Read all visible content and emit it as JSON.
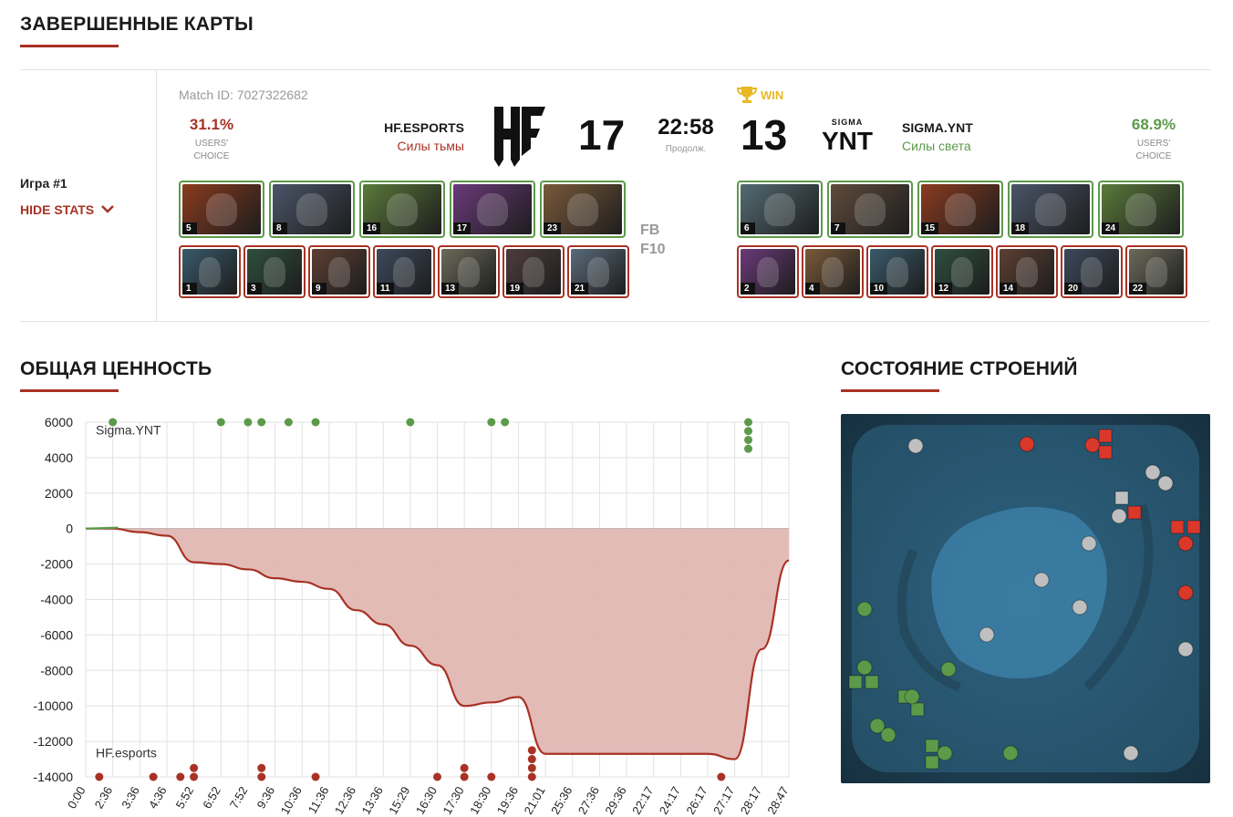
{
  "sections": {
    "completed_maps": "ЗАВЕРШЕННЫЕ КАРТЫ",
    "net_worth": "ОБЩАЯ ЦЕННОСТЬ",
    "buildings": "СОСТОЯНИЕ СТРОЕНИЙ"
  },
  "match": {
    "game_label": "Игра #1",
    "hide_stats": "HIDE STATS",
    "match_id": "Match ID: 7027322682",
    "duration": "22:58",
    "duration_label": "Продолж.",
    "win_label": "WIN",
    "fb": "FB",
    "f10": "F10",
    "team_left": {
      "name": "HF.ESPORTS",
      "side": "Силы тьмы",
      "score": "17",
      "users_pct": "31.1%",
      "users_label_1": "USERS'",
      "users_label_2": "CHOICE",
      "color": "#a83225",
      "picks": [
        "5",
        "8",
        "16",
        "17",
        "23"
      ],
      "bans": [
        "1",
        "3",
        "9",
        "11",
        "13",
        "19",
        "21"
      ]
    },
    "team_right": {
      "name": "SIGMA.YNT",
      "side": "Силы света",
      "score": "13",
      "users_pct": "68.9%",
      "users_label_1": "USERS'",
      "users_label_2": "CHOICE",
      "color": "#5c9a4a",
      "logo_top": "SIGMA",
      "logo_main": "YNT",
      "picks": [
        "6",
        "7",
        "15",
        "18",
        "24"
      ],
      "bans": [
        "2",
        "4",
        "10",
        "12",
        "14",
        "20",
        "22"
      ]
    }
  },
  "chart_data": {
    "type": "area",
    "title": "ОБЩАЯ ЦЕННОСТЬ",
    "series_labels": {
      "top": "Sigma.YNT",
      "bottom": "HF.esports"
    },
    "ylim": [
      -14000,
      6000
    ],
    "yticks": [
      6000,
      4000,
      2000,
      0,
      -2000,
      -4000,
      -6000,
      -8000,
      -10000,
      -12000,
      -14000
    ],
    "xticks": [
      "0:00",
      "2:36",
      "3:36",
      "4:36",
      "5:52",
      "6:52",
      "7:52",
      "9:36",
      "10:36",
      "11:36",
      "12:36",
      "13:36",
      "15:29",
      "16:30",
      "17:30",
      "18:30",
      "19:36",
      "21:01",
      "25:36",
      "27:36",
      "29:36",
      "22:17",
      "24:17",
      "26:17",
      "27:17",
      "28:17",
      "28:47"
    ],
    "values": [
      0,
      0,
      -200,
      -400,
      -1900,
      -2000,
      -2300,
      -2800,
      -3000,
      -3400,
      -4600,
      -5400,
      -6600,
      -7700,
      -10000,
      -9800,
      -9500,
      -12700,
      -12700,
      -12700,
      -12700,
      -12700,
      -12700,
      -12700,
      -13000,
      -6800,
      -1800
    ],
    "green_events": [
      [
        1,
        6000
      ],
      [
        5,
        6000
      ],
      [
        6,
        6000
      ],
      [
        6.5,
        6000
      ],
      [
        7.5,
        6000
      ],
      [
        8.5,
        6000
      ],
      [
        12,
        6000
      ],
      [
        15,
        6000
      ],
      [
        15.5,
        6000
      ],
      [
        24.5,
        6000
      ],
      [
        24.5,
        5500
      ],
      [
        24.5,
        5000
      ],
      [
        24.5,
        4500
      ]
    ],
    "red_events": [
      [
        0.5,
        -14000
      ],
      [
        2.5,
        -14000
      ],
      [
        3.5,
        -14000
      ],
      [
        4,
        -14000
      ],
      [
        4,
        -13500
      ],
      [
        6.5,
        -14000
      ],
      [
        6.5,
        -13500
      ],
      [
        8.5,
        -14000
      ],
      [
        13,
        -14000
      ],
      [
        14,
        -14000
      ],
      [
        14,
        -13500
      ],
      [
        15,
        -14000
      ],
      [
        16.5,
        -14000
      ],
      [
        16.5,
        -13500
      ],
      [
        16.5,
        -13000
      ],
      [
        16.5,
        -12500
      ],
      [
        23.5,
        -14000
      ]
    ]
  },
  "colors": {
    "accent": "#a83225",
    "radiant": "#5c9a4a",
    "dire": "#a83225",
    "win": "#e8b825",
    "area_fill": "#e0b7b3"
  }
}
